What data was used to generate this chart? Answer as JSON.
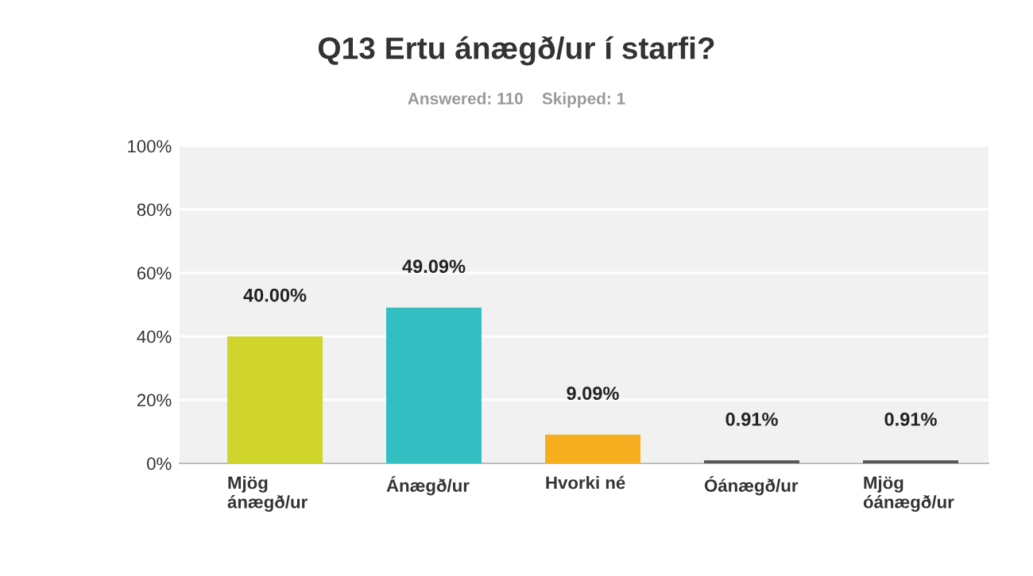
{
  "chart_data": {
    "type": "bar",
    "title": "Q13 Ertu ánægð/ur í starfi?",
    "subtitle": "Answered: 110    Skipped: 1",
    "categories": [
      "Mjög\nánægð/ur",
      "Ánægð/ur",
      "Hvorki né",
      "Óánægð/ur",
      "Mjög\nóánægð/ur"
    ],
    "values": [
      40.0,
      49.09,
      9.09,
      0.91,
      0.91
    ],
    "colors": [
      "#cfd52b",
      "#33bfc1",
      "#f6ae1f",
      "#555555",
      "#555555"
    ],
    "value_labels": [
      "40.00%",
      "49.09%",
      "9.09%",
      "0.91%",
      "0.91%"
    ],
    "ylim": [
      0,
      100
    ],
    "yticks": [
      {
        "value": 0,
        "label": "0%"
      },
      {
        "value": 20,
        "label": "20%"
      },
      {
        "value": 40,
        "label": "40%"
      },
      {
        "value": 60,
        "label": "60%"
      },
      {
        "value": 80,
        "label": "80%"
      },
      {
        "value": 100,
        "label": "100%"
      }
    ],
    "grid": "y"
  }
}
